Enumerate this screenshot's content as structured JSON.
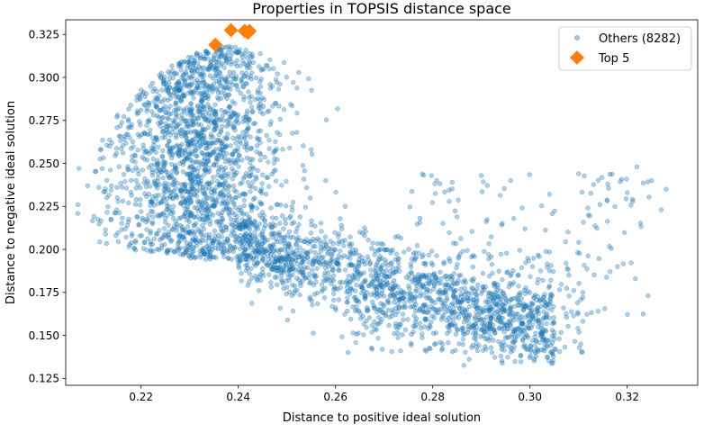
{
  "chart_data": {
    "type": "scatter",
    "title": "Properties in TOPSIS distance space",
    "xlabel": "Distance to positive ideal solution",
    "ylabel": "Distance to negative ideal solution",
    "xlim": [
      0.2045,
      0.3345
    ],
    "ylim": [
      0.121,
      0.3335
    ],
    "xticks": [
      0.22,
      0.24,
      0.26,
      0.28,
      0.3,
      0.32
    ],
    "xtick_labels": [
      "0.22",
      "0.24",
      "0.26",
      "0.28",
      "0.30",
      "0.32"
    ],
    "yticks": [
      0.125,
      0.15,
      0.175,
      0.2,
      0.225,
      0.25,
      0.275,
      0.3,
      0.325
    ],
    "ytick_labels": [
      "0.125",
      "0.150",
      "0.175",
      "0.200",
      "0.225",
      "0.250",
      "0.275",
      "0.300",
      "0.325"
    ],
    "legend_position": "top-right",
    "series": [
      {
        "name": "Others (8282)",
        "marker": "circle",
        "color": "#1f77b4",
        "count": 8282,
        "description": "dense cloud: broad cluster x≈0.215–0.26 (y≈0.19–0.31), band descending to x≈0.30 (y≈0.13–0.17), sparse outliers to x≈0.33",
        "sample_points": [
          [
            0.207,
            0.226
          ],
          [
            0.209,
            0.237
          ],
          [
            0.212,
            0.247
          ],
          [
            0.214,
            0.262
          ],
          [
            0.215,
            0.223
          ],
          [
            0.218,
            0.271
          ],
          [
            0.219,
            0.229
          ],
          [
            0.22,
            0.281
          ],
          [
            0.221,
            0.216
          ],
          [
            0.223,
            0.288
          ],
          [
            0.225,
            0.208
          ],
          [
            0.226,
            0.294
          ],
          [
            0.228,
            0.25
          ],
          [
            0.23,
            0.201
          ],
          [
            0.232,
            0.302
          ],
          [
            0.234,
            0.196
          ],
          [
            0.236,
            0.31
          ],
          [
            0.238,
            0.318
          ],
          [
            0.24,
            0.315
          ],
          [
            0.242,
            0.3
          ],
          [
            0.244,
            0.291
          ],
          [
            0.246,
            0.28
          ],
          [
            0.248,
            0.268
          ],
          [
            0.25,
            0.178
          ],
          [
            0.252,
            0.268
          ],
          [
            0.255,
            0.258
          ],
          [
            0.258,
            0.24
          ],
          [
            0.26,
            0.166
          ],
          [
            0.262,
            0.225
          ],
          [
            0.265,
            0.21
          ],
          [
            0.268,
            0.158
          ],
          [
            0.27,
            0.2
          ],
          [
            0.273,
            0.19
          ],
          [
            0.276,
            0.152
          ],
          [
            0.28,
            0.185
          ],
          [
            0.282,
            0.145
          ],
          [
            0.284,
            0.239
          ],
          [
            0.286,
            0.17
          ],
          [
            0.288,
            0.143
          ],
          [
            0.29,
            0.243
          ],
          [
            0.292,
            0.16
          ],
          [
            0.294,
            0.138
          ],
          [
            0.296,
            0.24
          ],
          [
            0.298,
            0.155
          ],
          [
            0.3,
            0.137
          ],
          [
            0.302,
            0.17
          ],
          [
            0.304,
            0.232
          ],
          [
            0.306,
            0.148
          ],
          [
            0.308,
            0.185
          ],
          [
            0.31,
            0.244
          ],
          [
            0.312,
            0.22
          ],
          [
            0.314,
            0.164
          ],
          [
            0.316,
            0.238
          ],
          [
            0.318,
            0.19
          ],
          [
            0.32,
            0.233
          ],
          [
            0.322,
            0.248
          ],
          [
            0.325,
            0.24
          ],
          [
            0.327,
            0.223
          ],
          [
            0.328,
            0.235
          ]
        ]
      },
      {
        "name": "Top 5",
        "marker": "diamond",
        "color": "#ff7f0e",
        "points": [
          [
            0.2353,
            0.319
          ],
          [
            0.2385,
            0.3275
          ],
          [
            0.2413,
            0.327
          ],
          [
            0.2423,
            0.327
          ],
          [
            0.242,
            0.326
          ]
        ]
      }
    ]
  }
}
